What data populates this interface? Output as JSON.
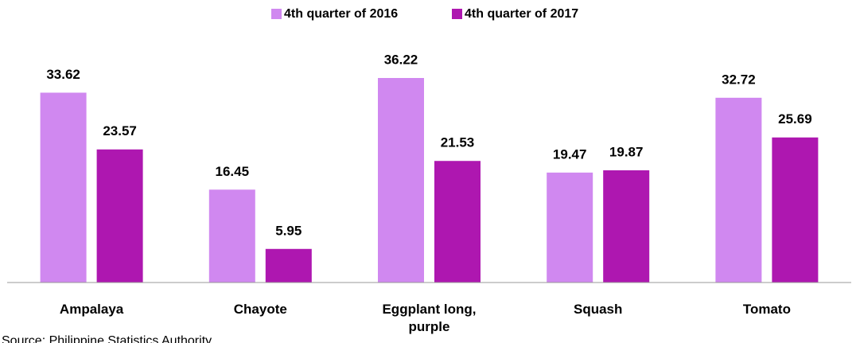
{
  "chart_data": {
    "type": "bar",
    "categories": [
      "Ampalaya",
      "Chayote",
      "Eggplant long, purple",
      "Squash",
      "Tomato"
    ],
    "series": [
      {
        "name": "4th quarter of 2016",
        "color": "#d088f0",
        "values": [
          33.62,
          16.45,
          36.22,
          19.47,
          32.72
        ]
      },
      {
        "name": "4th quarter of 2017",
        "color": "#ae17b0",
        "values": [
          23.57,
          5.95,
          21.53,
          19.87,
          25.69
        ]
      }
    ],
    "legend": "top"
  },
  "source": "Source: Philippine Statistics Authority"
}
